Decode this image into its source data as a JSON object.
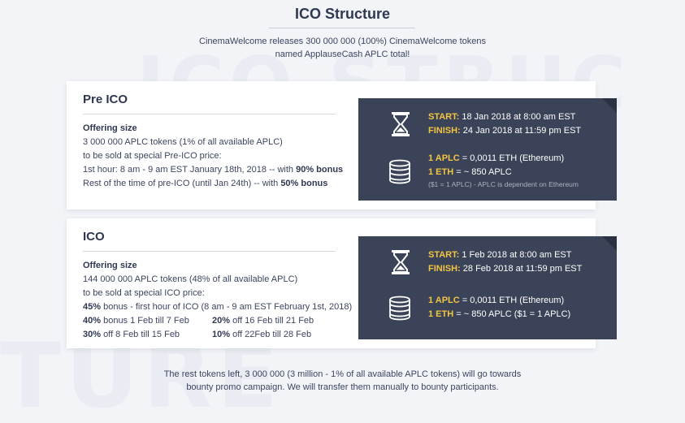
{
  "background": {
    "top_word": "ICO STRUC",
    "bottom_word": "TURE"
  },
  "header": {
    "title": "ICO Structure",
    "intro_line1": "CinemaWelcome releases 300 000 000 (100%) CinemaWelcome tokens",
    "intro_line2": "named ApplauseCash APLC total!"
  },
  "pre_ico": {
    "title": "Pre ICO",
    "offering_label": "Offering size",
    "line1": "3 000 000 APLC tokens (1% of all available APLC)",
    "line2": "to be sold at special Pre-ICO price:",
    "line3_pre": "1st hour: 8 am - 9 am EST January 18th, 2018 -- with ",
    "line3_bold": "90% bonus",
    "line4_pre": "Rest of the time of pre-ICO (until Jan 24th)  -- with ",
    "line4_bold": "50% bonus",
    "panel": {
      "start_label": "START:",
      "start_value": " 18 Jan 2018 at 8:00 am EST",
      "finish_label": "FINISH:",
      "finish_value": " 24 Jan 2018 at 11:59 pm EST",
      "rate1_label": "1 APLC",
      "rate1_value": " = 0,0011 ETH (Ethereum)",
      "rate2_label": "1 ETH",
      "rate2_value": " = ~ 850 APLC",
      "note": "($1 = 1 APLC) - APLC is dependent on Ethereum"
    }
  },
  "ico": {
    "title": "ICO",
    "offering_label": "Offering size",
    "line1": "144 000 000 APLC tokens (48% of all available APLC)",
    "line2": "to be sold at special ICO price:",
    "line3_bold": "45%",
    "line3_rest": " bonus - first hour of ICO (8 am  - 9 am EST February 1st, 2018)",
    "bonus": [
      {
        "pct": "40%",
        "text": " bonus 1 Feb till 7 Feb"
      },
      {
        "pct": "20%",
        "text": " off 16 Feb till 21 Feb"
      },
      {
        "pct": "30%",
        "text": " off 8 Feb till 15 Feb"
      },
      {
        "pct": "10%",
        "text": " off 22Feb till 28 Feb"
      }
    ],
    "panel": {
      "start_label": "START:",
      "start_value": " 1 Feb 2018 at 8:00 am EST",
      "finish_label": "FINISH:",
      "finish_value": " 28 Feb 2018 at 11:59 pm EST",
      "rate1_label": "1 APLC",
      "rate1_value": " = 0,0011 ETH (Ethereum)",
      "rate2_label": "1 ETH",
      "rate2_value": " = ~ 850 APLC ($1 = 1 APLC)"
    }
  },
  "footer": {
    "line1": "The rest tokens left, 3 000 000 (3 million - 1% of all available APLC tokens) will go towards",
    "line2": "bounty promo campaign. We will transfer them manually to bounty participants."
  },
  "icons": {
    "time": "hourglass-icon",
    "rate": "coins-stack-icon"
  },
  "colors": {
    "accent": "#f4c542",
    "panel": "#3a4357",
    "text": "#2e3850"
  }
}
